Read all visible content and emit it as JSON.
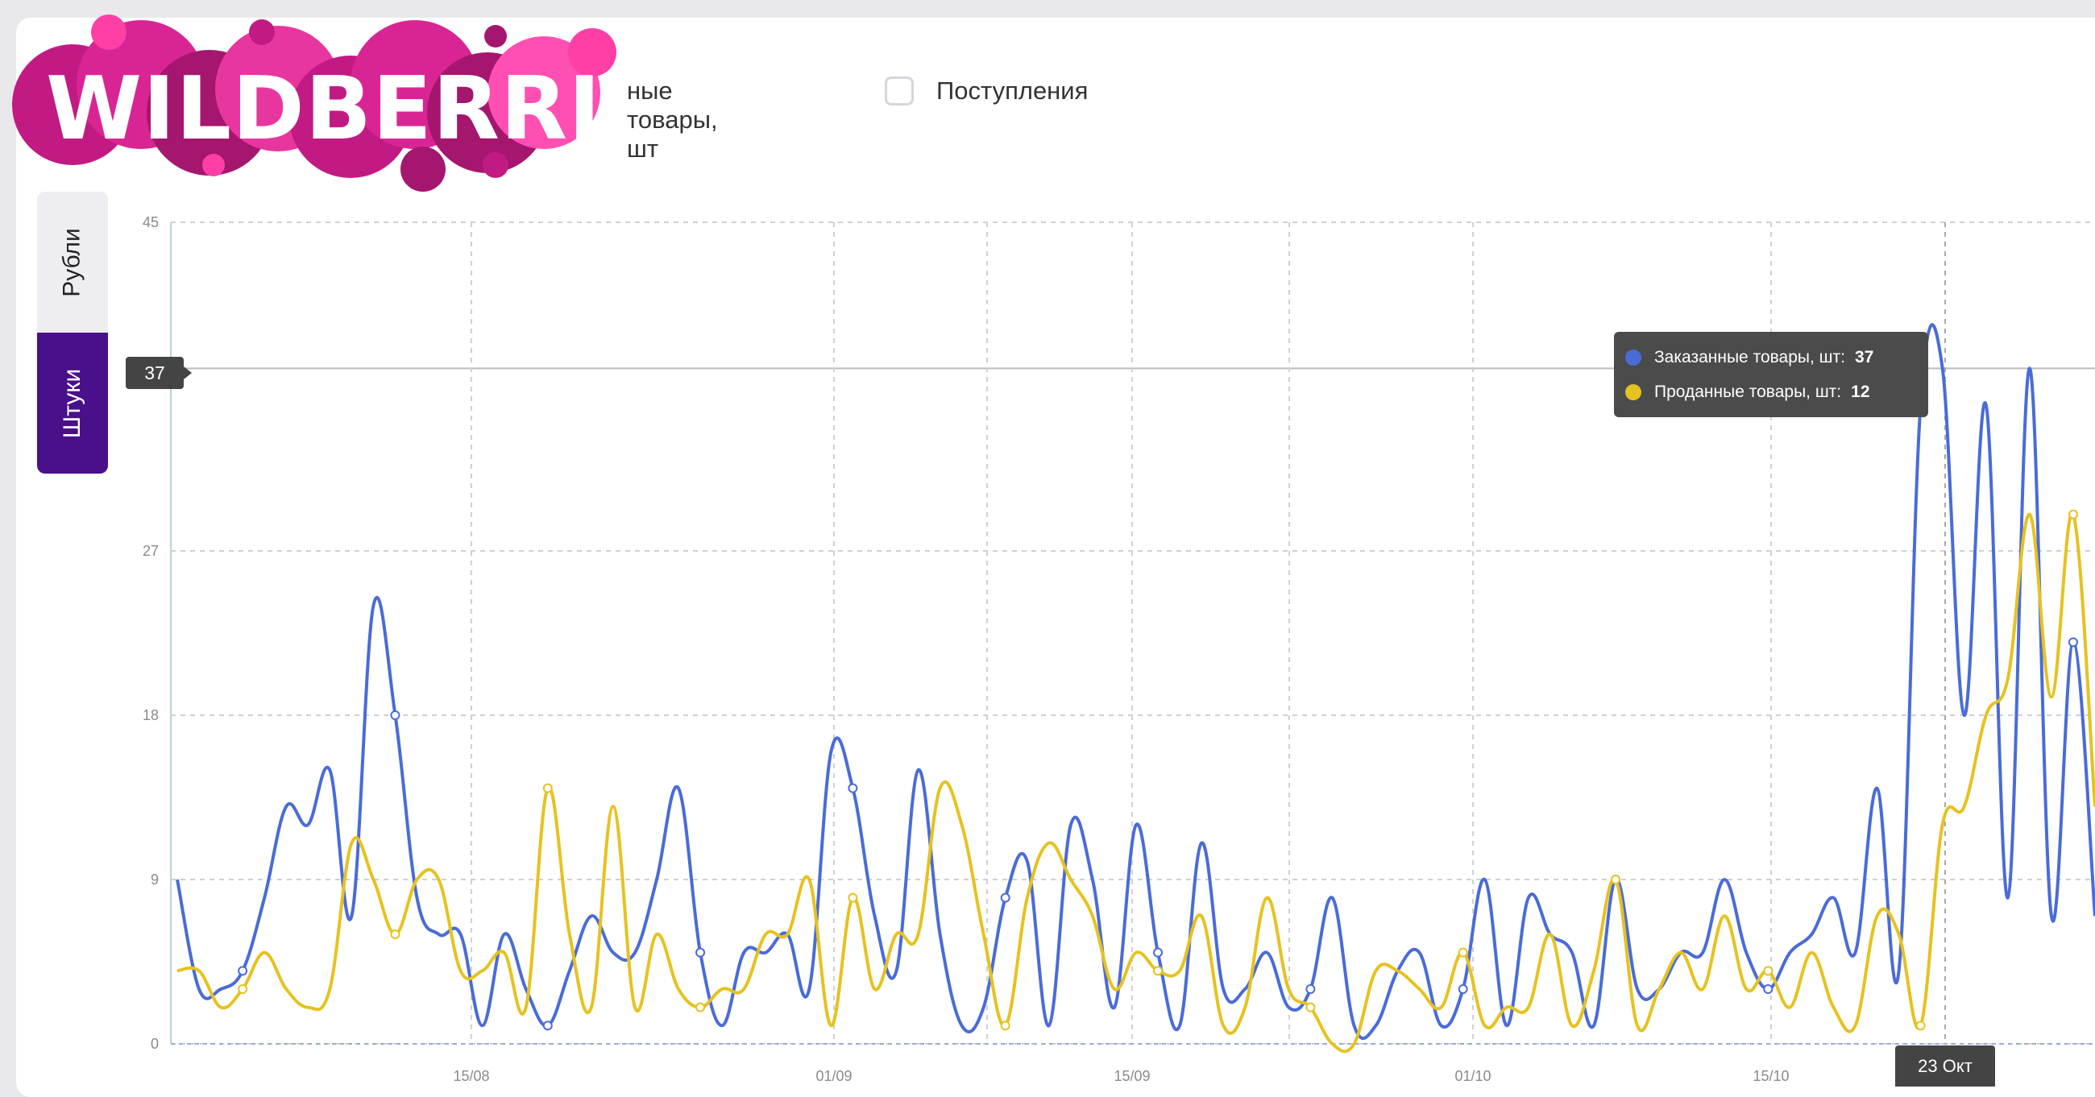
{
  "legend": {
    "sold_label": "ные товары, шт",
    "receipts_label": "Поступления"
  },
  "logo": {
    "text": "WILDBERRIES"
  },
  "units": {
    "rubles": "Рубли",
    "pieces": "Штуки"
  },
  "marker": {
    "value": "37"
  },
  "tooltip": {
    "ordered_label": "Заказанные товары, шт:",
    "ordered_value": "37",
    "sold_label": "Проданные товары, шт:",
    "sold_value": "12"
  },
  "date_marker": {
    "label": "23 Окт"
  },
  "colors": {
    "ordered": "#4a6bd8",
    "sold": "#e6c21f",
    "brand": "#4a0f8a"
  },
  "chart_data": {
    "type": "line",
    "ylim": [
      0,
      45
    ],
    "y_ticks": [
      "0",
      "9",
      "18",
      "27",
      "37",
      "45"
    ],
    "x_ticks": [
      "15/08",
      "01/09",
      "15/09",
      "01/10",
      "15/10"
    ],
    "series": [
      {
        "name": "Заказанные товары, шт",
        "values": [
          9,
          3,
          3,
          4,
          8,
          13,
          12,
          15,
          7,
          24,
          18,
          8,
          6,
          6,
          1,
          6,
          3,
          1,
          4,
          7,
          5,
          5,
          9,
          14,
          5,
          1,
          5,
          5,
          6,
          3,
          16,
          14,
          7,
          4,
          15,
          6,
          1,
          2,
          8,
          10,
          1,
          12,
          9,
          2,
          12,
          5,
          1,
          11,
          3,
          3,
          5,
          2,
          3,
          8,
          1,
          1,
          4,
          5,
          1,
          3,
          9,
          1,
          8,
          6,
          5,
          1,
          9,
          3,
          3,
          5,
          5,
          9,
          5,
          3,
          5,
          6,
          8,
          5,
          14,
          4,
          35,
          37,
          18,
          35,
          8,
          37,
          7,
          22,
          7
        ]
      },
      {
        "name": "Проданные товары, шт",
        "values": [
          4,
          4,
          2,
          3,
          5,
          3,
          2,
          3,
          11,
          9,
          6,
          9,
          9,
          4,
          4,
          5,
          2,
          14,
          6,
          2,
          13,
          2,
          6,
          3,
          2,
          3,
          3,
          6,
          6,
          9,
          1,
          8,
          3,
          6,
          6,
          14,
          12,
          6,
          1,
          8,
          11,
          9,
          7,
          3,
          5,
          4,
          4,
          7,
          1,
          2,
          8,
          3,
          2,
          0,
          0,
          4,
          4,
          3,
          2,
          5,
          1,
          2,
          2,
          6,
          1,
          4,
          9,
          1,
          3,
          5,
          3,
          7,
          3,
          4,
          2,
          5,
          2,
          1,
          7,
          6,
          1,
          12,
          13,
          18,
          20,
          29,
          19,
          29,
          13
        ]
      }
    ]
  }
}
